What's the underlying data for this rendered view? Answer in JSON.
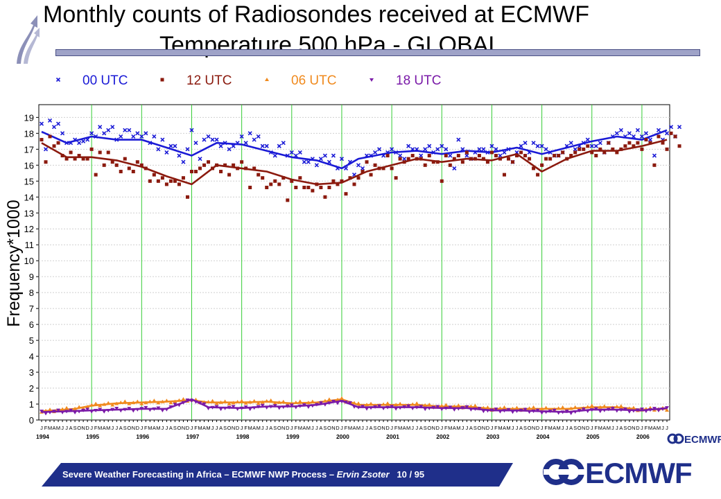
{
  "slide": {
    "title_line1": "Monthly counts of Radiosondes received at ECMWF",
    "title_line2": "Temperature  500 hPa - GLOBAL",
    "footer_main": "Severe Weather Forecasting in Africa – ECMWF NWP Process – ",
    "footer_author": "Ervin Zsoter",
    "footer_page": "10 / 95",
    "logo_text": "ECMWF",
    "logo_small_text": "ECMWF",
    "colors": {
      "banner": "#1f2f8a",
      "title_bar": "#9fa3c8",
      "logo": "#1f2f8a"
    }
  },
  "chart_data": {
    "type": "line",
    "title": "",
    "xlabel": "",
    "ylabel": "Frequency*1000",
    "ylim": [
      0,
      19.8
    ],
    "yticks": [
      0,
      1,
      2,
      3,
      4,
      5,
      6,
      7,
      8,
      9,
      10,
      11,
      12,
      13,
      14,
      15,
      16,
      17,
      18,
      19
    ],
    "x_start": "1994-01",
    "x_end": "2006-06",
    "month_letters": "JFMAMJJASOND",
    "year_labels": [
      "1994",
      "1995",
      "1996",
      "1997",
      "1998",
      "1999",
      "2000",
      "2001",
      "2002",
      "2003",
      "2004",
      "2005",
      "2006"
    ],
    "grid": true,
    "legend_position": "top",
    "series": [
      {
        "name": "00 UTC",
        "color": "#1a1ad6",
        "marker": "x",
        "trend": [
          [
            0,
            18.1
          ],
          [
            6,
            17.4
          ],
          [
            12,
            17.8
          ],
          [
            18,
            17.6
          ],
          [
            24,
            17.6
          ],
          [
            30,
            17.1
          ],
          [
            36,
            16.6
          ],
          [
            42,
            17.4
          ],
          [
            48,
            17.3
          ],
          [
            54,
            16.9
          ],
          [
            60,
            16.5
          ],
          [
            66,
            16.3
          ],
          [
            72,
            15.8
          ],
          [
            76,
            16.4
          ],
          [
            84,
            16.8
          ],
          [
            90,
            16.9
          ],
          [
            96,
            16.7
          ],
          [
            102,
            16.9
          ],
          [
            108,
            16.8
          ],
          [
            114,
            17.1
          ],
          [
            120,
            16.7
          ],
          [
            126,
            17.1
          ],
          [
            132,
            17.5
          ],
          [
            138,
            17.8
          ],
          [
            144,
            17.6
          ],
          [
            150,
            18.2
          ]
        ],
        "values": [
          18.6,
          17.0,
          18.8,
          18.4,
          18.6,
          18.0,
          17.4,
          17.4,
          17.6,
          17.4,
          17.5,
          17.6,
          18.0,
          17.8,
          18.4,
          18.0,
          18.2,
          18.4,
          17.6,
          17.8,
          18.2,
          18.2,
          17.8,
          18.0,
          17.8,
          18.0,
          17.4,
          17.8,
          17.0,
          17.6,
          16.8,
          17.2,
          17.2,
          16.6,
          16.2,
          17.0,
          18.2,
          17.4,
          16.4,
          17.6,
          17.8,
          17.6,
          17.6,
          17.2,
          17.4,
          17.0,
          17.2,
          17.4,
          17.8,
          17.4,
          18.0,
          17.6,
          17.8,
          17.2,
          17.2,
          16.8,
          16.6,
          17.2,
          17.4,
          16.6,
          16.8,
          16.6,
          16.8,
          16.2,
          16.2,
          16.4,
          16.0,
          16.4,
          16.6,
          16.2,
          16.6,
          15.8,
          16.4,
          15.8,
          16.2,
          15.4,
          16.0,
          15.8,
          16.6,
          16.6,
          16.8,
          17.0,
          16.6,
          16.8,
          17.0,
          16.8,
          16.6,
          16.4,
          17.2,
          17.0,
          17.0,
          16.6,
          17.0,
          17.2,
          16.8,
          17.0,
          17.2,
          17.0,
          16.6,
          15.8,
          17.6,
          17.0,
          16.6,
          16.4,
          16.8,
          17.0,
          17.0,
          16.8,
          17.2,
          17.0,
          16.6,
          16.8,
          17.0,
          16.2,
          16.8,
          17.2,
          17.4,
          16.8,
          17.4,
          17.2,
          17.2,
          17.0,
          16.8,
          16.6,
          16.6,
          16.8,
          17.2,
          17.4,
          17.0,
          17.2,
          17.4,
          17.6,
          17.2,
          17.2,
          17.4,
          16.8,
          17.4,
          17.8,
          18.0,
          18.2,
          17.8,
          18.0,
          17.8,
          18.2,
          17.8,
          18.0,
          17.6,
          16.6,
          18.2,
          17.6,
          18.0,
          18.4,
          17.8,
          18.4
        ]
      },
      {
        "name": "12 UTC",
        "color": "#8b1a0e",
        "marker": "square",
        "trend": [
          [
            0,
            17.4
          ],
          [
            6,
            16.5
          ],
          [
            12,
            16.5
          ],
          [
            18,
            16.3
          ],
          [
            24,
            15.9
          ],
          [
            30,
            15.3
          ],
          [
            36,
            14.8
          ],
          [
            42,
            16.0
          ],
          [
            48,
            15.8
          ],
          [
            54,
            15.6
          ],
          [
            60,
            15.1
          ],
          [
            66,
            14.8
          ],
          [
            72,
            14.9
          ],
          [
            78,
            15.6
          ],
          [
            84,
            16.0
          ],
          [
            90,
            16.4
          ],
          [
            96,
            16.2
          ],
          [
            102,
            16.4
          ],
          [
            108,
            16.3
          ],
          [
            114,
            16.7
          ],
          [
            120,
            15.6
          ],
          [
            126,
            16.4
          ],
          [
            132,
            16.9
          ],
          [
            138,
            16.9
          ],
          [
            144,
            17.2
          ],
          [
            150,
            17.6
          ]
        ],
        "values": [
          17.6,
          16.2,
          17.8,
          17.2,
          17.4,
          16.6,
          16.4,
          16.8,
          16.4,
          16.6,
          16.4,
          16.4,
          17.0,
          15.4,
          16.8,
          16.0,
          16.8,
          16.2,
          16.0,
          15.6,
          16.4,
          15.8,
          15.6,
          16.2,
          16.0,
          15.8,
          15.0,
          15.4,
          15.0,
          15.2,
          14.8,
          15.0,
          15.0,
          14.8,
          15.2,
          14.0,
          15.6,
          15.6,
          15.8,
          16.0,
          16.2,
          15.8,
          16.0,
          15.6,
          16.0,
          15.4,
          16.0,
          15.8,
          16.2,
          15.8,
          14.6,
          15.8,
          15.4,
          15.2,
          14.6,
          14.8,
          15.0,
          14.8,
          15.2,
          13.8,
          15.0,
          14.6,
          15.2,
          14.6,
          14.6,
          14.4,
          14.8,
          14.6,
          14.0,
          14.6,
          15.0,
          14.8,
          15.0,
          14.2,
          15.2,
          14.8,
          15.2,
          15.6,
          16.2,
          15.4,
          16.0,
          15.8,
          15.8,
          16.6,
          15.8,
          15.2,
          16.4,
          16.2,
          16.4,
          16.6,
          16.4,
          16.4,
          16.0,
          16.6,
          16.2,
          16.2,
          15.0,
          16.6,
          16.0,
          16.4,
          16.6,
          16.2,
          16.8,
          16.4,
          16.4,
          16.6,
          16.4,
          16.2,
          16.8,
          16.6,
          16.4,
          15.4,
          16.4,
          16.2,
          16.6,
          16.8,
          16.6,
          16.4,
          15.8,
          15.4,
          16.0,
          16.4,
          16.4,
          16.6,
          16.6,
          16.8,
          16.4,
          16.6,
          16.8,
          17.0,
          17.0,
          17.2,
          16.8,
          16.6,
          17.0,
          16.8,
          17.4,
          17.0,
          16.8,
          17.0,
          17.2,
          17.4,
          17.2,
          17.4,
          17.0,
          17.6,
          17.4,
          16.0,
          17.8,
          17.4,
          17.0,
          18.0,
          17.8,
          17.2
        ]
      },
      {
        "name": "06 UTC",
        "color": "#f08a1e",
        "marker": "triangle",
        "trend": [
          [
            0,
            0.55
          ],
          [
            8,
            0.7
          ],
          [
            12,
            0.9
          ],
          [
            18,
            1.05
          ],
          [
            24,
            1.1
          ],
          [
            30,
            1.15
          ],
          [
            36,
            1.25
          ],
          [
            40,
            1.1
          ],
          [
            48,
            1.1
          ],
          [
            54,
            1.15
          ],
          [
            60,
            1.05
          ],
          [
            66,
            1.1
          ],
          [
            72,
            1.3
          ],
          [
            76,
            0.95
          ],
          [
            84,
            0.95
          ],
          [
            90,
            0.95
          ],
          [
            96,
            0.85
          ],
          [
            102,
            0.85
          ],
          [
            108,
            0.7
          ],
          [
            114,
            0.7
          ],
          [
            120,
            0.7
          ],
          [
            126,
            0.7
          ],
          [
            132,
            0.8
          ],
          [
            138,
            0.8
          ],
          [
            144,
            0.65
          ],
          [
            150,
            0.7
          ]
        ]
      },
      {
        "name": "18 UTC",
        "color": "#7a1aa8",
        "marker": "triangle-down",
        "trend": [
          [
            0,
            0.5
          ],
          [
            6,
            0.55
          ],
          [
            12,
            0.6
          ],
          [
            18,
            0.65
          ],
          [
            24,
            0.7
          ],
          [
            30,
            0.7
          ],
          [
            36,
            1.3
          ],
          [
            40,
            0.8
          ],
          [
            48,
            0.75
          ],
          [
            54,
            0.85
          ],
          [
            60,
            0.85
          ],
          [
            66,
            0.95
          ],
          [
            72,
            1.2
          ],
          [
            76,
            0.8
          ],
          [
            84,
            0.8
          ],
          [
            90,
            0.8
          ],
          [
            96,
            0.75
          ],
          [
            102,
            0.75
          ],
          [
            108,
            0.6
          ],
          [
            114,
            0.6
          ],
          [
            120,
            0.55
          ],
          [
            126,
            0.5
          ],
          [
            132,
            0.65
          ],
          [
            138,
            0.65
          ],
          [
            144,
            0.6
          ],
          [
            150,
            0.75
          ]
        ]
      }
    ]
  }
}
